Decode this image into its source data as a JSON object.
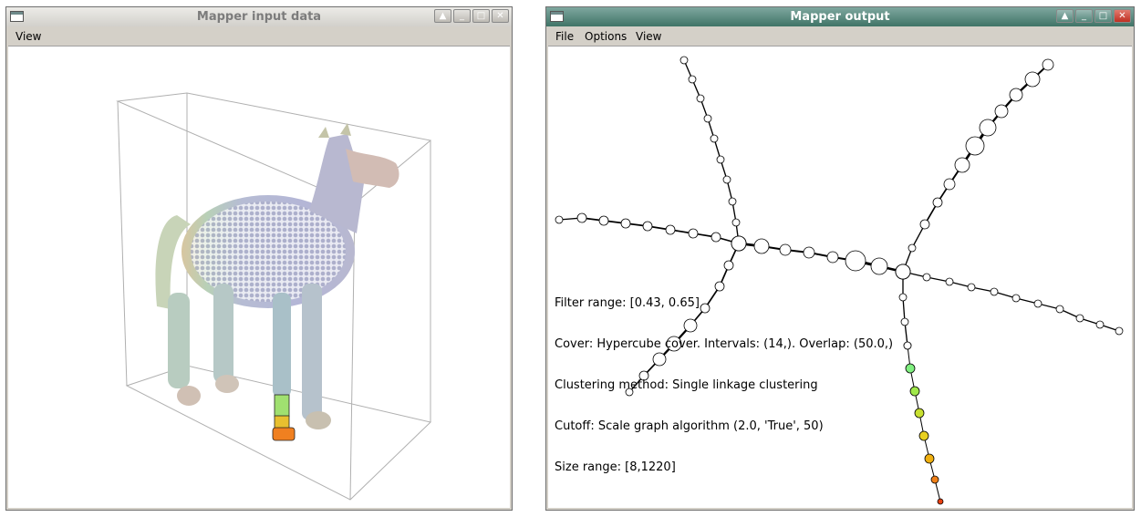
{
  "left_window": {
    "title": "Mapper input data",
    "menu": [
      "View"
    ]
  },
  "right_window": {
    "title": "Mapper output",
    "menu": [
      "File",
      "Options",
      "View"
    ],
    "info": {
      "filter_range": "Filter range: [0.43, 0.65]",
      "cover": "Cover: Hypercube cover. Intervals: (14,). Overlap: (50.0,)",
      "clustering": "Clustering method: Single linkage clustering",
      "cutoff": "Cutoff: Scale graph algorithm (2.0, 'True', 50)",
      "size_range": "Size range: [8,1220]"
    }
  },
  "colors": {
    "right_titlebar": "#3f7467",
    "node_fill": "#ffffff",
    "highlight_nodes": [
      "#80f080",
      "#a0e84a",
      "#c8e030",
      "#e8d020",
      "#f0b010",
      "#f08018",
      "#e84010"
    ]
  },
  "icons": [
    "window-menu-icon",
    "shade-icon",
    "minimize-icon",
    "maximize-icon",
    "close-icon"
  ]
}
